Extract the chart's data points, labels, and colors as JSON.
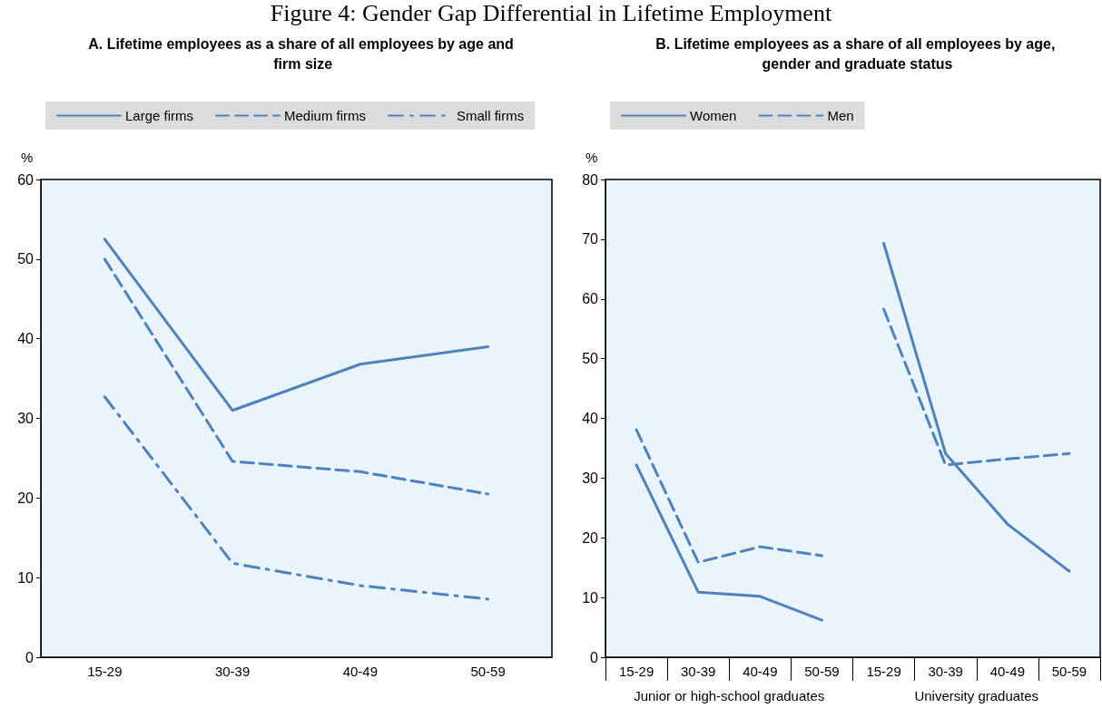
{
  "chart_data": [
    {
      "type": "line",
      "title": "Figure 4: Gender Gap Differential in Lifetime Employment",
      "subtitle": "A. Lifetime employees as a share of all employees by age and firm size",
      "ylabel": "%",
      "categories": [
        "15-29",
        "30-39",
        "40-49",
        "50-59"
      ],
      "series": [
        {
          "name": "Large firms",
          "color": "#4f81bd",
          "line_style": "solid",
          "values": [
            52.5,
            31.0,
            36.8,
            39.0
          ]
        },
        {
          "name": "Medium firms",
          "color": "#4f81bd",
          "line_style": "dashed",
          "values": [
            50.0,
            24.6,
            23.3,
            20.5
          ]
        },
        {
          "name": "Small firms",
          "color": "#4f81bd",
          "line_style": "dashdot",
          "values": [
            32.7,
            11.8,
            9.0,
            7.3
          ]
        }
      ],
      "ylim": [
        0,
        60
      ],
      "yticks": [
        0,
        10,
        20,
        30,
        40,
        50,
        60
      ],
      "grid": false,
      "legend": "top",
      "marker": "none"
    },
    {
      "type": "line",
      "subtitle": "B. Lifetime employees as a share of all employees by age, gender and graduate status",
      "ylabel": "%",
      "categories": [
        "15-29",
        "30-39",
        "40-49",
        "50-59",
        "15-29",
        "30-39",
        "40-49",
        "50-59"
      ],
      "annotations": [
        "Junior or high-school graduates",
        "University graduates"
      ],
      "series": [
        {
          "name": "Women",
          "color": "#4f81bd",
          "line_style": "solid",
          "values": [
            32.2,
            10.9,
            10.2,
            6.2,
            69.3,
            34.1,
            22.3,
            14.4
          ]
        },
        {
          "name": "Men",
          "color": "#4f81bd",
          "line_style": "dashed",
          "values": [
            38.1,
            15.9,
            18.5,
            17.0,
            58.3,
            32.2,
            33.2,
            34.1
          ]
        }
      ],
      "ylim": [
        0,
        80
      ],
      "yticks": [
        0,
        10,
        20,
        30,
        40,
        50,
        60,
        70,
        80
      ],
      "grid": false,
      "legend": "top",
      "marker": "none"
    }
  ]
}
